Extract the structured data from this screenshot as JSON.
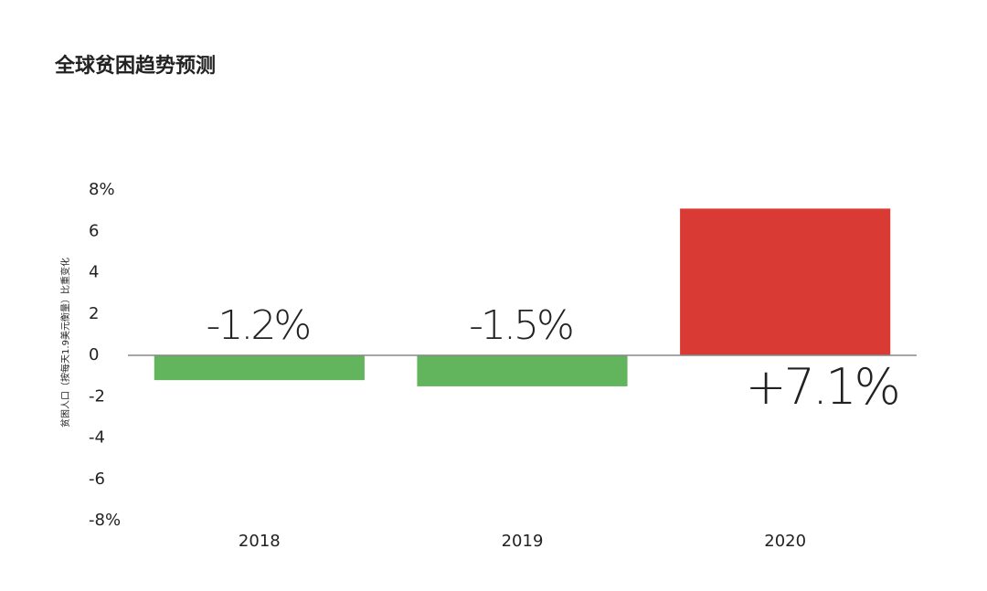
{
  "chart_data": {
    "type": "bar",
    "title": "全球贫困趋势预测",
    "y_label": "贫困人口（按每天1.9美元衡量）比重变化",
    "categories": [
      "2018",
      "2019",
      "2020"
    ],
    "values": [
      -1.2,
      -1.5,
      7.1
    ],
    "value_labels": [
      "-1.2%",
      "-1.5%",
      "+7.1%"
    ],
    "colors": [
      "#62b55c",
      "#62b55c",
      "#d93a33"
    ],
    "ylim": [
      -8,
      8
    ],
    "yticks": [
      {
        "value": 8,
        "label": "8%"
      },
      6,
      4,
      2,
      0,
      -2,
      -4,
      -6,
      {
        "value": -8,
        "label": "-8%"
      }
    ],
    "grid": false
  }
}
